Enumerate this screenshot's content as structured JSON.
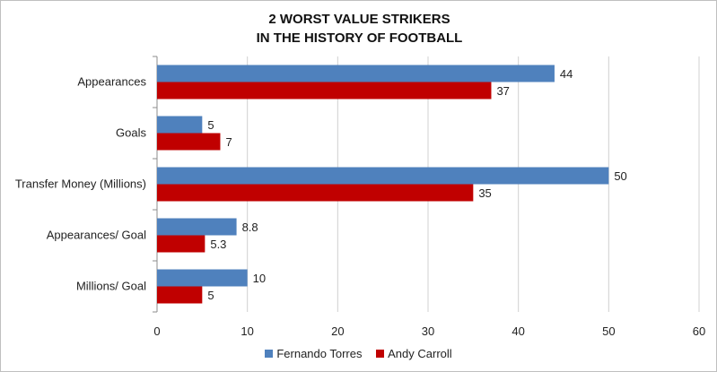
{
  "chart_data": {
    "type": "bar",
    "orientation": "horizontal",
    "title_lines": [
      "2 WORST VALUE STRIKERS",
      "IN THE HISTORY OF FOOTBALL"
    ],
    "categories": [
      "Appearances",
      "Goals",
      "Transfer Money (Millions)",
      "Appearances/ Goal",
      "Millions/ Goal"
    ],
    "series": [
      {
        "name": "Fernando Torres",
        "color": "#4f81bd",
        "values": [
          44,
          5,
          50,
          8.8,
          10
        ]
      },
      {
        "name": "Andy Carroll",
        "color": "#c00000",
        "values": [
          37,
          7,
          35,
          5.3,
          5
        ]
      }
    ],
    "xlim": [
      0,
      60
    ],
    "xticks": [
      0,
      10,
      20,
      30,
      40,
      50,
      60
    ],
    "grid": true,
    "legend_position": "bottom"
  }
}
